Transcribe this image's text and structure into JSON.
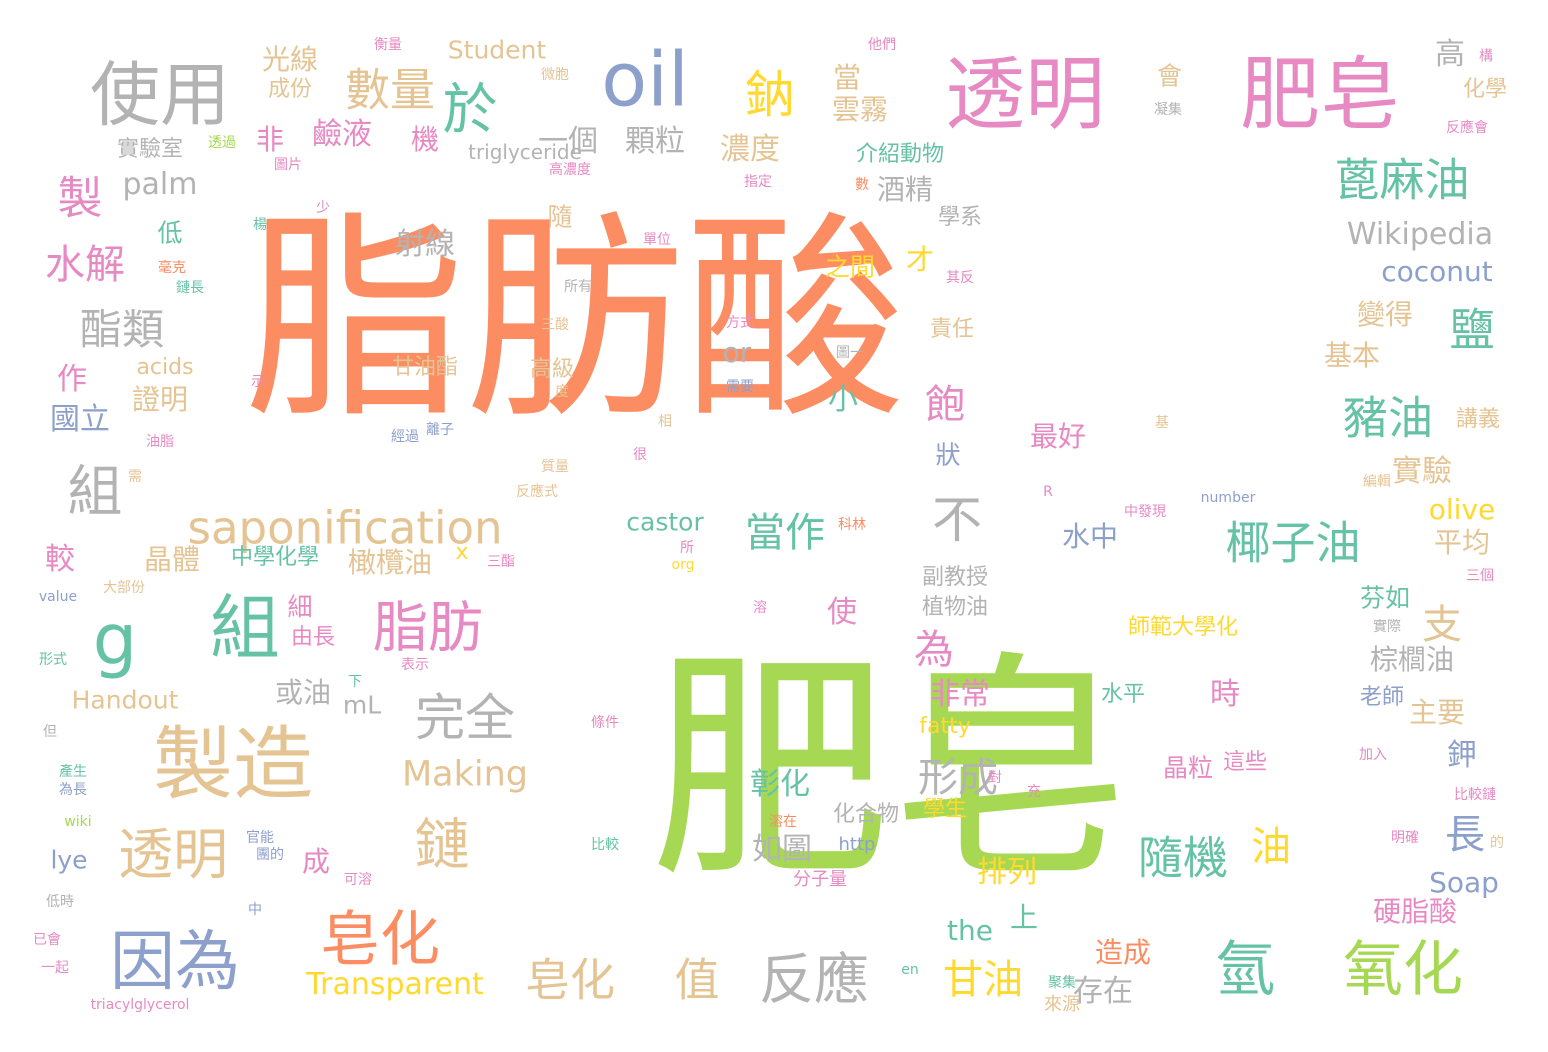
{
  "palette": {
    "orange": "#fc8d62",
    "green": "#a6d854",
    "pink": "#e78ac3",
    "blue": "#8da0cb",
    "teal": "#66c2a5",
    "yellow": "#ffd92f",
    "tan": "#e5c494",
    "gray": "#b3b3b3"
  },
  "words": [
    {
      "t": "脂肪酸"
    },
    {
      "t": "肥皂"
    },
    {
      "t": "透明"
    },
    {
      "t": "肥皂"
    },
    {
      "t": "使用"
    },
    {
      "t": "oil"
    },
    {
      "t": "於"
    },
    {
      "t": "鈉"
    },
    {
      "t": "數量"
    },
    {
      "t": "光線"
    },
    {
      "t": "Student"
    },
    {
      "t": "成份"
    },
    {
      "t": "一個"
    },
    {
      "t": "顆粒"
    },
    {
      "t": "當"
    },
    {
      "t": "雲霧"
    },
    {
      "t": "會"
    },
    {
      "t": "高"
    },
    {
      "t": "化學"
    },
    {
      "t": "濃度"
    },
    {
      "t": "非"
    },
    {
      "t": "鹼液"
    },
    {
      "t": "機"
    },
    {
      "t": "實驗室"
    },
    {
      "t": "triglyceride"
    },
    {
      "t": "介紹動物"
    },
    {
      "t": "蓖麻油"
    },
    {
      "t": "製"
    },
    {
      "t": "palm"
    },
    {
      "t": "酒精"
    },
    {
      "t": "學系"
    },
    {
      "t": "Wikipedia"
    },
    {
      "t": "coconut"
    },
    {
      "t": "水解"
    },
    {
      "t": "低"
    },
    {
      "t": "隨"
    },
    {
      "t": "射線"
    },
    {
      "t": "之間"
    },
    {
      "t": "才"
    },
    {
      "t": "鹽"
    },
    {
      "t": "變得"
    },
    {
      "t": "酯類"
    },
    {
      "t": "責任"
    },
    {
      "t": "基本"
    },
    {
      "t": "作"
    },
    {
      "t": "or"
    },
    {
      "t": "甘油酯"
    },
    {
      "t": "高級"
    },
    {
      "t": "acids"
    },
    {
      "t": "證明"
    },
    {
      "t": "小"
    },
    {
      "t": "飽"
    },
    {
      "t": "豬油"
    },
    {
      "t": "國立"
    },
    {
      "t": "最好"
    },
    {
      "t": "講義"
    },
    {
      "t": "組"
    },
    {
      "t": "狀"
    },
    {
      "t": "實驗"
    },
    {
      "t": "不"
    },
    {
      "t": "saponification"
    },
    {
      "t": "castor"
    },
    {
      "t": "當作"
    },
    {
      "t": "olive"
    },
    {
      "t": "椰子油"
    },
    {
      "t": "較"
    },
    {
      "t": "晶體"
    },
    {
      "t": "中學化學"
    },
    {
      "t": "橄欖油"
    },
    {
      "t": "水中"
    },
    {
      "t": "平均"
    },
    {
      "t": "g"
    },
    {
      "t": "組"
    },
    {
      "t": "脂肪"
    },
    {
      "t": "支"
    },
    {
      "t": "副教授"
    },
    {
      "t": "植物油"
    },
    {
      "t": "芬如"
    },
    {
      "t": "師範大學化"
    },
    {
      "t": "細"
    },
    {
      "t": "由長"
    },
    {
      "t": "使"
    },
    {
      "t": "為"
    },
    {
      "t": "棕櫚油"
    },
    {
      "t": "Handout"
    },
    {
      "t": "或油"
    },
    {
      "t": "mL"
    },
    {
      "t": "完全"
    },
    {
      "t": "非常"
    },
    {
      "t": "時"
    },
    {
      "t": "主要"
    },
    {
      "t": "水平"
    },
    {
      "t": "fatty"
    },
    {
      "t": "老師"
    },
    {
      "t": "製造"
    },
    {
      "t": "Making"
    },
    {
      "t": "形成"
    },
    {
      "t": "鉀"
    },
    {
      "t": "晶粒"
    },
    {
      "t": "這些"
    },
    {
      "t": "彰化"
    },
    {
      "t": "學生"
    },
    {
      "t": "化合物"
    },
    {
      "t": "長"
    },
    {
      "t": "透明"
    },
    {
      "t": "鏈"
    },
    {
      "t": "如圖"
    },
    {
      "t": "隨機"
    },
    {
      "t": "油"
    },
    {
      "t": "lye"
    },
    {
      "t": "成"
    },
    {
      "t": "排列"
    },
    {
      "t": "http"
    },
    {
      "t": "Soap"
    },
    {
      "t": "分子量"
    },
    {
      "t": "皂化"
    },
    {
      "t": "硬脂酸"
    },
    {
      "t": "因為"
    },
    {
      "t": "the"
    },
    {
      "t": "上"
    },
    {
      "t": "造成"
    },
    {
      "t": "皂化"
    },
    {
      "t": "值"
    },
    {
      "t": "反應"
    },
    {
      "t": "甘油"
    },
    {
      "t": "存在"
    },
    {
      "t": "氫"
    },
    {
      "t": "氧化"
    },
    {
      "t": "Transparent"
    },
    {
      "t": "triacylglycerol"
    },
    {
      "t": "來源"
    },
    {
      "t": "衡量"
    },
    {
      "t": "他們"
    },
    {
      "t": "構"
    },
    {
      "t": "微胞"
    },
    {
      "t": "凝集"
    },
    {
      "t": "反應會"
    },
    {
      "t": "透過"
    },
    {
      "t": "圖片"
    },
    {
      "t": "高濃度"
    },
    {
      "t": "指定"
    },
    {
      "t": "數"
    },
    {
      "t": "楊"
    },
    {
      "t": "少"
    },
    {
      "t": "單位"
    },
    {
      "t": "毫克"
    },
    {
      "t": "鏈長"
    },
    {
      "t": "所有"
    },
    {
      "t": "其反"
    },
    {
      "t": "三酸"
    },
    {
      "t": "方式"
    },
    {
      "t": "圖一"
    },
    {
      "t": "需要"
    },
    {
      "t": "示"
    },
    {
      "t": "度"
    },
    {
      "t": "油脂"
    },
    {
      "t": "相"
    },
    {
      "t": "經過"
    },
    {
      "t": "離子"
    },
    {
      "t": "很"
    },
    {
      "t": "質量"
    },
    {
      "t": "需"
    },
    {
      "t": "反應式"
    },
    {
      "t": "R"
    },
    {
      "t": "number"
    },
    {
      "t": "中發現"
    },
    {
      "t": "所"
    },
    {
      "t": "x"
    },
    {
      "t": "三酯"
    },
    {
      "t": "org"
    },
    {
      "t": "科林"
    },
    {
      "t": "編輯"
    },
    {
      "t": "基"
    },
    {
      "t": "大部份"
    },
    {
      "t": "value"
    },
    {
      "t": "三個"
    },
    {
      "t": "溶"
    },
    {
      "t": "實際"
    },
    {
      "t": "形式"
    },
    {
      "t": "下"
    },
    {
      "t": "表示"
    },
    {
      "t": "但"
    },
    {
      "t": "條件"
    },
    {
      "t": "產生"
    },
    {
      "t": "為長"
    },
    {
      "t": "對"
    },
    {
      "t": "加入"
    },
    {
      "t": "wiki"
    },
    {
      "t": "充"
    },
    {
      "t": "比較鏈"
    },
    {
      "t": "溶在"
    },
    {
      "t": "比較"
    },
    {
      "t": "明確"
    },
    {
      "t": "的"
    },
    {
      "t": "官能"
    },
    {
      "t": "團的"
    },
    {
      "t": "可溶"
    },
    {
      "t": "低時"
    },
    {
      "t": "中"
    },
    {
      "t": "已會"
    },
    {
      "t": "一起"
    },
    {
      "t": "聚集"
    },
    {
      "t": "en"
    }
  ]
}
